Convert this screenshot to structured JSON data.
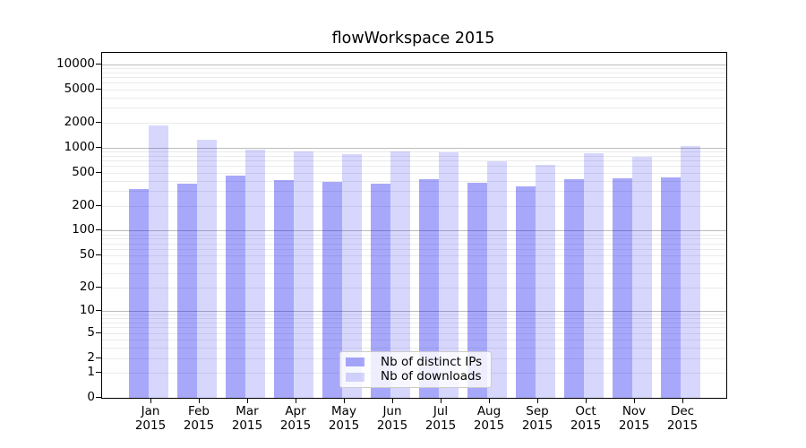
{
  "chart_data": {
    "type": "bar",
    "title": "flowWorkspace 2015",
    "categories": [
      "Jan",
      "Feb",
      "Mar",
      "Apr",
      "May",
      "Jun",
      "Jul",
      "Aug",
      "Sep",
      "Oct",
      "Nov",
      "Dec"
    ],
    "year": "2015",
    "series": [
      {
        "name": "Nb of distinct IPs",
        "color": "rgba(0,0,240,0.34)",
        "values": [
          320,
          365,
          465,
          410,
          385,
          370,
          420,
          380,
          345,
          420,
          430,
          440
        ]
      },
      {
        "name": "Nb of downloads",
        "color": "rgba(0,0,240,0.155)",
        "values": [
          1850,
          1250,
          950,
          900,
          840,
          905,
          885,
          690,
          625,
          865,
          780,
          1050
        ]
      }
    ],
    "xlabel": "",
    "ylabel": "",
    "y_axis": {
      "scale": "log1p",
      "tick_values": [
        0,
        1,
        2,
        5,
        10,
        20,
        50,
        100,
        200,
        500,
        1000,
        2000,
        5000,
        10000
      ],
      "tick_labels": [
        "0",
        "1",
        "2",
        "5",
        "10",
        "20",
        "50",
        "100",
        "200",
        "500",
        "1000",
        "2000",
        "5000",
        "10000"
      ],
      "ylim": [
        0,
        13600
      ]
    },
    "grid": {
      "enabled": true,
      "major_color": "#bdbdbd",
      "minor_color": "#ebebeb"
    },
    "legend": {
      "position": "lower center"
    }
  }
}
